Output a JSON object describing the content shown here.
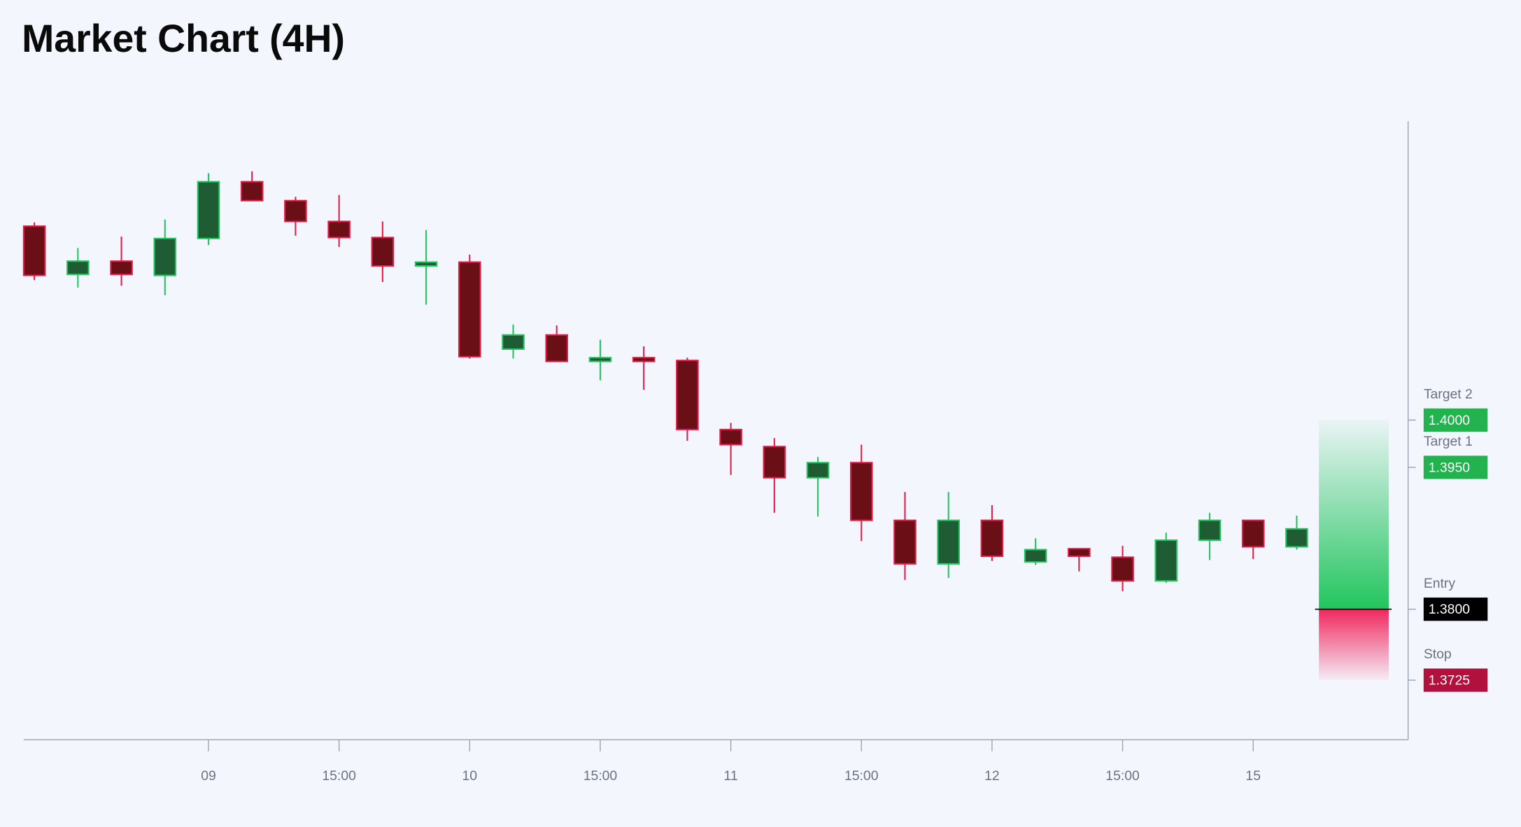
{
  "chart_data": {
    "type": "candlestick",
    "title": "Market Chart (4H)",
    "categories": [
      null,
      null,
      null,
      null,
      "09",
      null,
      null,
      "15:00",
      null,
      null,
      "10",
      null,
      null,
      "15:00",
      null,
      null,
      "11",
      null,
      null,
      "15:00",
      null,
      null,
      "12",
      null,
      null,
      "15:00",
      null,
      null,
      "15",
      null
    ],
    "series": [
      {
        "up_color": "#22c55e",
        "down_color": "#e11d48",
        "open": [
          1.4205,
          1.4154,
          1.4168,
          1.4153,
          1.4192,
          1.4252,
          1.4232,
          1.421,
          1.4193,
          1.4163,
          1.4167,
          1.4075,
          1.409,
          1.4062,
          1.4066,
          1.4063,
          1.399,
          1.3972,
          1.3939,
          1.3955,
          1.3894,
          1.3848,
          1.3894,
          1.385,
          1.3864,
          1.3855,
          1.383,
          1.3873,
          1.3894,
          1.3866
        ],
        "high": [
          1.4209,
          1.4182,
          1.4194,
          1.4212,
          1.4261,
          1.4263,
          1.4236,
          1.4238,
          1.421,
          1.4201,
          1.4175,
          1.4101,
          1.41,
          1.4085,
          1.4078,
          1.4066,
          1.3997,
          1.3981,
          1.3961,
          1.3974,
          1.3924,
          1.3924,
          1.391,
          1.3875,
          1.3864,
          1.3867,
          1.3881,
          1.3902,
          1.3894,
          1.3899
        ],
        "low": [
          1.4148,
          1.414,
          1.4142,
          1.4132,
          1.4185,
          1.4232,
          1.4195,
          1.4183,
          1.4146,
          1.4122,
          1.4065,
          1.4065,
          1.4062,
          1.4042,
          1.4032,
          1.3978,
          1.3942,
          1.3902,
          1.3898,
          1.3872,
          1.3831,
          1.3833,
          1.3851,
          1.3847,
          1.384,
          1.3819,
          1.3828,
          1.3852,
          1.3853,
          1.3863
        ],
        "close": [
          1.4153,
          1.4168,
          1.4154,
          1.4192,
          1.4252,
          1.4232,
          1.421,
          1.4193,
          1.4163,
          1.4167,
          1.4067,
          1.409,
          1.4062,
          1.4066,
          1.4062,
          1.399,
          1.3974,
          1.3939,
          1.3955,
          1.3894,
          1.3848,
          1.3894,
          1.3856,
          1.3863,
          1.3856,
          1.383,
          1.3873,
          1.3894,
          1.3866,
          1.3885
        ]
      }
    ],
    "ylim": [
      1.3662,
      1.4316
    ],
    "levels": [
      {
        "name": "Target 2",
        "value": 1.4,
        "label": "1.4000",
        "color": "#22b34f"
      },
      {
        "name": "Target 1",
        "value": 1.395,
        "label": "1.3950",
        "color": "#22b34f"
      },
      {
        "name": "Entry",
        "value": 1.38,
        "label": "1.3800",
        "color": "#000000"
      },
      {
        "name": "Stop",
        "value": 1.3725,
        "label": "1.3725",
        "color": "#b0113d"
      }
    ]
  }
}
